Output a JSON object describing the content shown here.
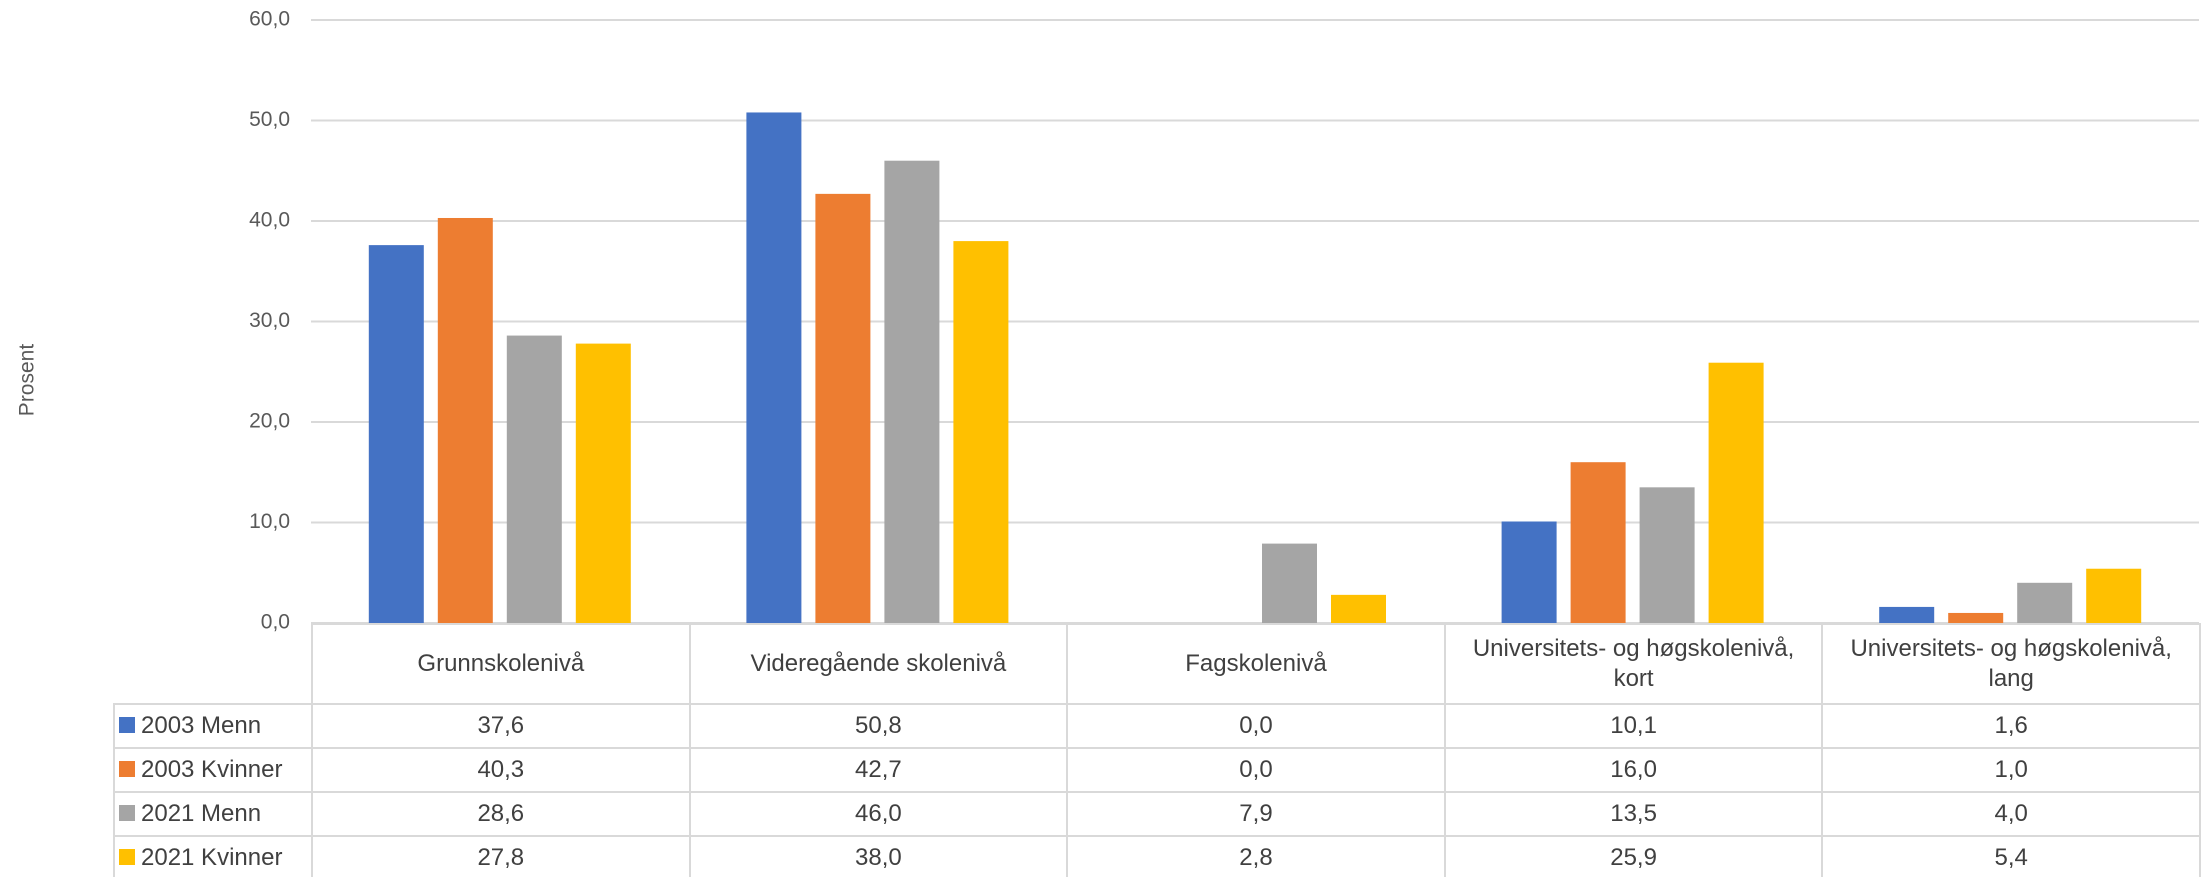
{
  "chart_data": {
    "type": "bar",
    "y_label": "Prosent",
    "categories": [
      "Grunnskolenivå",
      "Videregående skolenivå",
      "Fagskolenivå",
      "Universitets- og høgskolenivå, kort",
      "Universitets- og høgskolenivå, lang"
    ],
    "series": [
      {
        "name": "2003 Menn",
        "color": "#4472c4",
        "values": [
          37.6,
          50.8,
          0,
          10.1,
          1.6
        ],
        "value_labels": [
          "37,6",
          "50,8",
          "0,0",
          "10,1",
          "1,6"
        ]
      },
      {
        "name": "2003 Kvinner",
        "color": "#ed7d31",
        "values": [
          40.3,
          42.7,
          0,
          16,
          1
        ],
        "value_labels": [
          "40,3",
          "42,7",
          "0,0",
          "16,0",
          "1,0"
        ]
      },
      {
        "name": "2021 Menn",
        "color": "#a5a5a5",
        "values": [
          28.6,
          46,
          7.9,
          13.5,
          4
        ],
        "value_labels": [
          "28,6",
          "46,0",
          "7,9",
          "13,5",
          "4,0"
        ]
      },
      {
        "name": "2021 Kvinner",
        "color": "#ffc000",
        "values": [
          27.8,
          38,
          2.8,
          25.9,
          5.4
        ],
        "value_labels": [
          "27,8",
          "38,0",
          "2,8",
          "25,9",
          "5,4"
        ]
      }
    ],
    "ylim": [
      0,
      60
    ],
    "yticks": [
      {
        "value": 0,
        "label": "0,0"
      },
      {
        "value": 10,
        "label": "10,0"
      },
      {
        "value": 20,
        "label": "20,0"
      },
      {
        "value": 30,
        "label": "30,0"
      },
      {
        "value": 40,
        "label": "40,0"
      },
      {
        "value": 50,
        "label": "50,0"
      },
      {
        "value": 60,
        "label": "60,0"
      }
    ],
    "grid": true
  }
}
